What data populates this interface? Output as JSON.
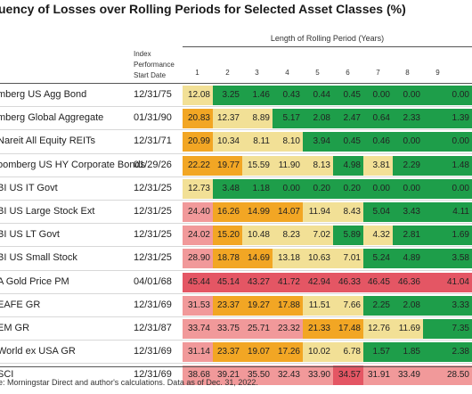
{
  "title": "uency of Losses over Rolling Periods for Selected Asset Classes (%)",
  "period_header": "Length of Rolling Period (Years)",
  "index_header": [
    "Index",
    "Performance",
    "Start Date"
  ],
  "columns": [
    "1",
    "2",
    "3",
    "4",
    "5",
    "6",
    "7",
    "8",
    "9"
  ],
  "source": "e: Morningstar Direct and author's calculations. Data as of Dec. 31, 2022.",
  "colors": {
    "green": "#1e9e4a",
    "yellow": "#f2e096",
    "orange": "#f2a624",
    "red": "#e45664",
    "pink": "#f1999a"
  },
  "chart_data": {
    "type": "table",
    "title": "uency of Losses over Rolling Periods for Selected Asset Classes (%)",
    "xlabel": "Length of Rolling Period (Years)",
    "categories": [
      "1",
      "2",
      "3",
      "4",
      "5",
      "6",
      "7",
      "8",
      "9"
    ],
    "rows": [
      {
        "name": "mberg US Agg Bond",
        "date": "12/31/75",
        "values": [
          "12.08",
          "3.25",
          "1.46",
          "0.43",
          "0.44",
          "0.45",
          "0.00",
          "0.00",
          "0.00"
        ],
        "colors": [
          "yellow",
          "green",
          "green",
          "green",
          "green",
          "green",
          "green",
          "green",
          "green"
        ]
      },
      {
        "name": "mberg Global Aggregate",
        "date": "01/31/90",
        "values": [
          "20.83",
          "12.37",
          "8.89",
          "5.17",
          "2.08",
          "2.47",
          "0.64",
          "2.33",
          "1.39"
        ],
        "colors": [
          "orange",
          "yellow",
          "yellow",
          "green",
          "green",
          "green",
          "green",
          "green",
          "green"
        ]
      },
      {
        "name": "Nareit All Equity REITs",
        "date": "12/31/71",
        "values": [
          "20.99",
          "10.34",
          "8.11",
          "8.10",
          "3.94",
          "0.45",
          "0.46",
          "0.00",
          "0.00"
        ],
        "colors": [
          "orange",
          "yellow",
          "yellow",
          "yellow",
          "green",
          "green",
          "green",
          "green",
          "green"
        ]
      },
      {
        "name": "oomberg US HY Corporate Bonds",
        "date": "01/29/26",
        "values": [
          "22.22",
          "19.77",
          "15.59",
          "11.90",
          "8.13",
          "4.98",
          "3.81",
          "2.29",
          "1.48"
        ],
        "colors": [
          "orange",
          "orange",
          "yellow",
          "yellow",
          "yellow",
          "green",
          "yellow",
          "green",
          "green"
        ]
      },
      {
        "name": "BI US IT Govt",
        "date": "12/31/25",
        "values": [
          "12.73",
          "3.48",
          "1.18",
          "0.00",
          "0.20",
          "0.20",
          "0.00",
          "0.00",
          "0.00"
        ],
        "colors": [
          "yellow",
          "green",
          "green",
          "green",
          "green",
          "green",
          "green",
          "green",
          "green"
        ]
      },
      {
        "name": "BI US Large Stock Ext",
        "date": "12/31/25",
        "values": [
          "24.40",
          "16.26",
          "14.99",
          "14.07",
          "11.94",
          "8.43",
          "5.04",
          "3.43",
          "4.11"
        ],
        "colors": [
          "pink",
          "orange",
          "orange",
          "orange",
          "yellow",
          "yellow",
          "green",
          "green",
          "green"
        ]
      },
      {
        "name": "BI US LT Govt",
        "date": "12/31/25",
        "values": [
          "24.02",
          "15.20",
          "10.48",
          "8.23",
          "7.02",
          "5.89",
          "4.32",
          "2.81",
          "1.69"
        ],
        "colors": [
          "pink",
          "orange",
          "yellow",
          "yellow",
          "yellow",
          "green",
          "yellow",
          "green",
          "green"
        ]
      },
      {
        "name": "BI US Small Stock",
        "date": "12/31/25",
        "values": [
          "28.90",
          "18.78",
          "14.69",
          "13.18",
          "10.63",
          "7.01",
          "5.24",
          "4.89",
          "3.58"
        ],
        "colors": [
          "pink",
          "orange",
          "orange",
          "yellow",
          "yellow",
          "yellow",
          "green",
          "green",
          "green"
        ]
      },
      {
        "name": "A Gold Price PM",
        "date": "04/01/68",
        "values": [
          "45.44",
          "45.14",
          "43.27",
          "41.72",
          "42.94",
          "46.33",
          "46.45",
          "46.36",
          "41.04"
        ],
        "colors": [
          "red",
          "red",
          "red",
          "red",
          "red",
          "red",
          "red",
          "red",
          "red"
        ]
      },
      {
        "name": "EAFE GR",
        "date": "12/31/69",
        "values": [
          "31.53",
          "23.37",
          "19.27",
          "17.88",
          "11.51",
          "7.66",
          "2.25",
          "2.08",
          "3.33"
        ],
        "colors": [
          "pink",
          "orange",
          "orange",
          "orange",
          "yellow",
          "yellow",
          "green",
          "green",
          "green"
        ]
      },
      {
        "name": "EM GR",
        "date": "12/31/87",
        "values": [
          "33.74",
          "33.75",
          "25.71",
          "23.32",
          "21.33",
          "17.48",
          "12.76",
          "11.69",
          "7.35"
        ],
        "colors": [
          "pink",
          "pink",
          "pink",
          "pink",
          "orange",
          "orange",
          "yellow",
          "yellow",
          "green"
        ]
      },
      {
        "name": "World ex USA GR",
        "date": "12/31/69",
        "values": [
          "31.14",
          "23.37",
          "19.07",
          "17.26",
          "10.02",
          "6.78",
          "1.57",
          "1.85",
          "2.38"
        ],
        "colors": [
          "pink",
          "orange",
          "orange",
          "orange",
          "yellow",
          "yellow",
          "green",
          "green",
          "green"
        ]
      },
      {
        "name": "SCI",
        "date": "12/31/69",
        "values": [
          "38.68",
          "39.21",
          "35.50",
          "32.43",
          "33.90",
          "34.57",
          "31.91",
          "33.49",
          "28.50"
        ],
        "colors": [
          "pink",
          "pink",
          "pink",
          "pink",
          "pink",
          "red",
          "pink",
          "pink",
          "pink"
        ]
      }
    ]
  }
}
